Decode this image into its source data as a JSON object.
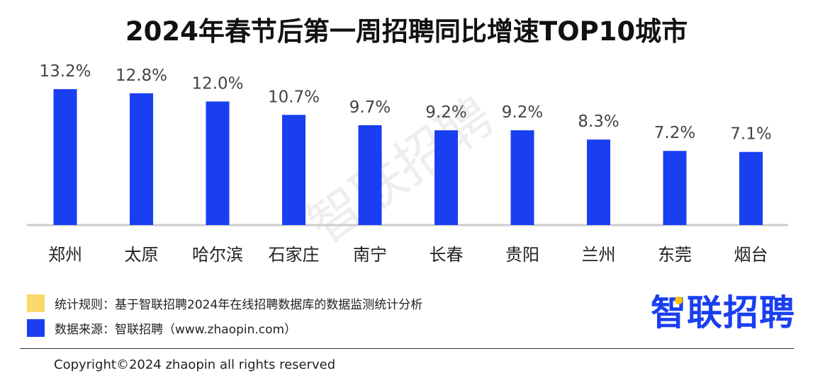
{
  "title": "2024年春节后第一周招聘同比增速TOP10城市",
  "watermark": "智联招聘",
  "colors": {
    "bar": "#1a3ff0",
    "rule_swatch": "#fbd86a",
    "source_swatch": "#1a3ff0",
    "baseline": "#cccccc"
  },
  "chart_data": {
    "type": "bar",
    "categories": [
      "郑州",
      "太原",
      "哈尔滨",
      "石家庄",
      "南宁",
      "长春",
      "贵阳",
      "兰州",
      "东莞",
      "烟台"
    ],
    "values": [
      13.2,
      12.8,
      12.0,
      10.7,
      9.7,
      9.2,
      9.2,
      8.3,
      7.2,
      7.1
    ],
    "value_labels": [
      "13.2%",
      "12.8%",
      "12.0%",
      "10.7%",
      "9.7%",
      "9.2%",
      "9.2%",
      "8.3%",
      "7.2%",
      "7.1%"
    ],
    "ylim": [
      0,
      14.5
    ],
    "grid": false,
    "title": "2024年春节后第一周招聘同比增速TOP10城市"
  },
  "notes": {
    "rule": "统计规则：基于智联招聘2024年在线招聘数据库的数据监测统计分析",
    "source": "数据来源：智联招聘（www.zhaopin.com）"
  },
  "logo_text": "智联招聘",
  "copyright": "Copyright©2024 zhaopin all rights reserved"
}
